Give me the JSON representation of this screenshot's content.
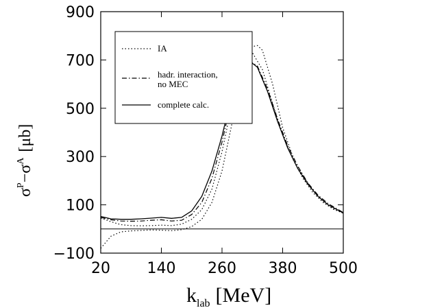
{
  "chart_data": {
    "type": "line",
    "title": "",
    "xlabel": {
      "main": "k",
      "sub": "lab",
      "unit": "[MeV]"
    },
    "ylabel": {
      "main": "σ",
      "sup1": "P",
      "dash": "−σ",
      "sup2": "A",
      "unit": "[μb]"
    },
    "xlim": [
      20,
      500
    ],
    "ylim": [
      -100,
      900
    ],
    "xticks": [
      {
        "value": 20,
        "label": "20"
      },
      {
        "value": 140,
        "label": "140"
      },
      {
        "value": 260,
        "label": "260"
      },
      {
        "value": 380,
        "label": "380"
      },
      {
        "value": 500,
        "label": "500"
      }
    ],
    "yticks": [
      {
        "value": 900,
        "label": "900"
      },
      {
        "value": 700,
        "label": "700"
      },
      {
        "value": 500,
        "label": "500"
      },
      {
        "value": 300,
        "label": "300"
      },
      {
        "value": 100,
        "label": "100"
      },
      {
        "value": -100,
        "label": "−100"
      }
    ],
    "zero_line": 0,
    "legend": {
      "placement": "top-left",
      "entries": [
        {
          "lines": [
            "IA"
          ],
          "style": "dotted"
        },
        {
          "lines": [
            "hadr. interaction,",
            "no MEC"
          ],
          "style": "dash-dot"
        },
        {
          "lines": [
            "complete calc."
          ],
          "style": "solid"
        }
      ]
    },
    "series": [
      {
        "style": "dotted",
        "x": [
          20,
          40,
          60,
          80,
          100,
          120,
          140,
          160,
          180,
          200,
          220,
          240,
          260,
          280,
          300,
          320,
          330,
          340,
          360,
          380,
          400,
          420,
          440,
          460,
          480,
          500
        ],
        "y": [
          -80,
          -30,
          -12,
          -8,
          -6,
          -4,
          -5,
          -7,
          -3,
          10,
          40,
          110,
          240,
          440,
          640,
          755,
          760,
          740,
          600,
          420,
          300,
          220,
          160,
          115,
          85,
          65
        ]
      },
      {
        "style": "dotted",
        "x": [
          20,
          40,
          60,
          80,
          100,
          120,
          140,
          160,
          180,
          200,
          220,
          240,
          260,
          280,
          300,
          320,
          340,
          360,
          380,
          400,
          420,
          440,
          460,
          480,
          500
        ],
        "y": [
          45,
          30,
          18,
          14,
          13,
          14,
          16,
          14,
          20,
          40,
          80,
          165,
          320,
          520,
          680,
          730,
          660,
          520,
          390,
          290,
          210,
          150,
          110,
          82,
          65
        ]
      },
      {
        "style": "dash-dot",
        "x": [
          20,
          40,
          60,
          80,
          100,
          120,
          140,
          160,
          180,
          200,
          220,
          240,
          260,
          280,
          300,
          315,
          330,
          350,
          370,
          390,
          410,
          430,
          450,
          470,
          500
        ],
        "y": [
          48,
          38,
          33,
          32,
          33,
          36,
          38,
          33,
          36,
          60,
          110,
          210,
          360,
          545,
          670,
          695,
          675,
          580,
          455,
          345,
          260,
          190,
          140,
          105,
          68
        ]
      },
      {
        "style": "solid",
        "x": [
          20,
          40,
          60,
          80,
          100,
          120,
          140,
          160,
          180,
          200,
          220,
          240,
          260,
          280,
          300,
          315,
          330,
          350,
          370,
          390,
          410,
          430,
          450,
          470,
          500
        ],
        "y": [
          52,
          42,
          40,
          40,
          42,
          45,
          48,
          44,
          48,
          75,
          135,
          240,
          385,
          560,
          675,
          695,
          670,
          570,
          445,
          335,
          250,
          185,
          135,
          100,
          66
        ]
      }
    ]
  }
}
